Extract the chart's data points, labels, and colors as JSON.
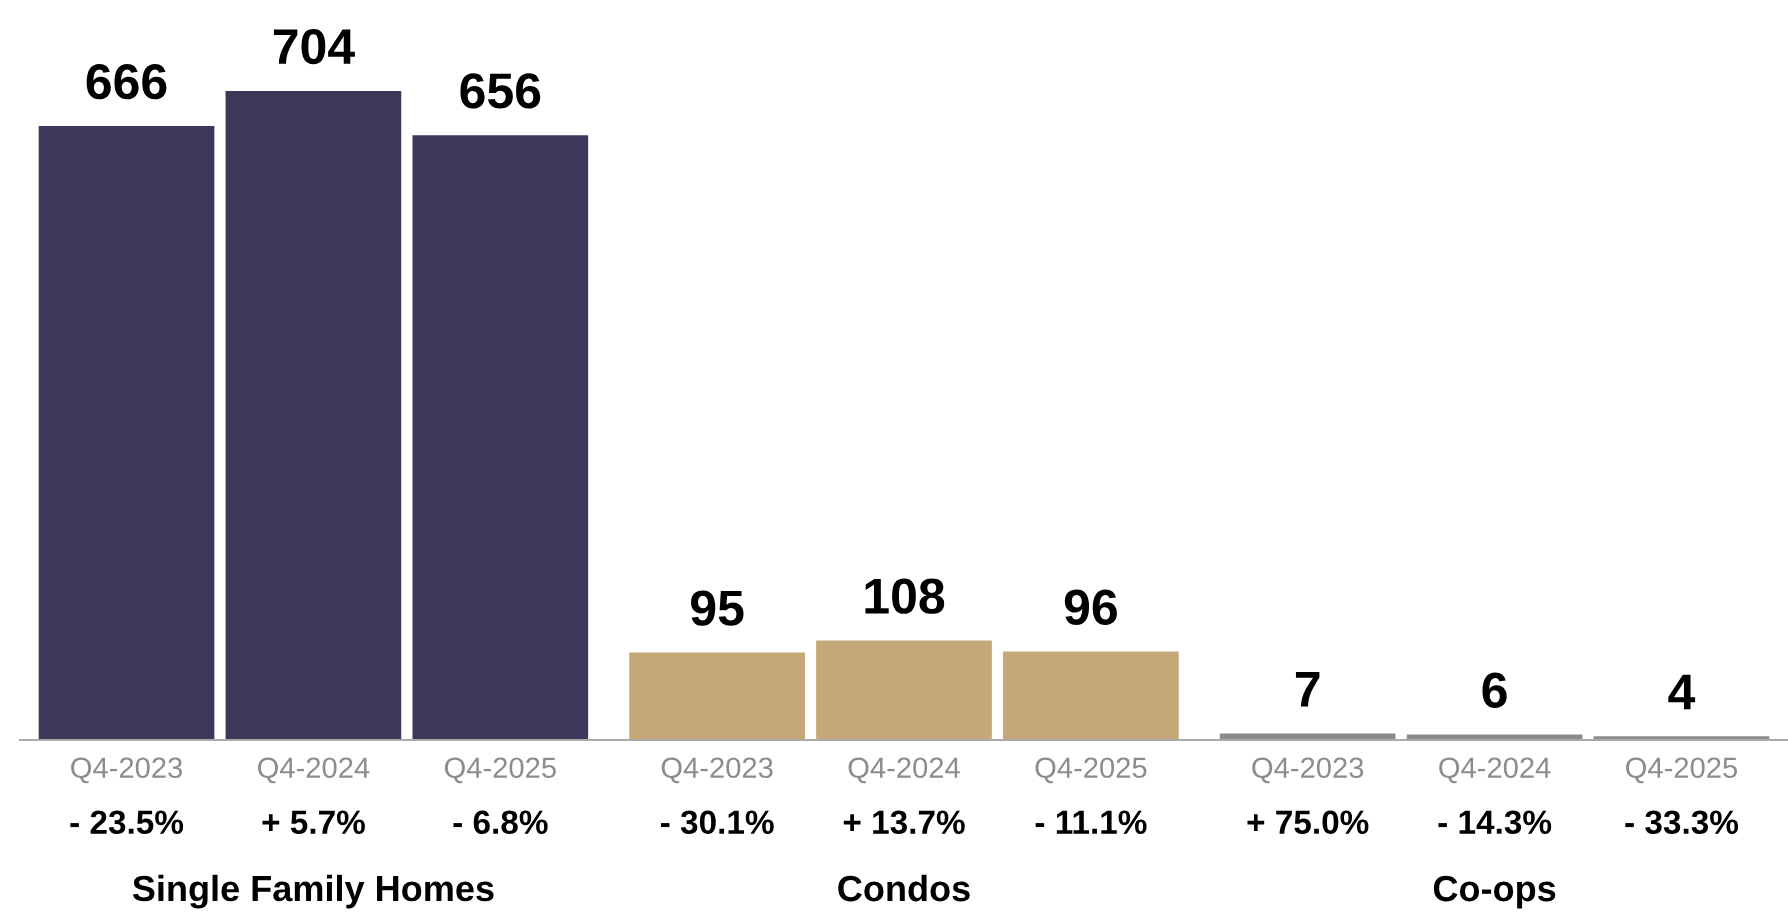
{
  "chart_data": {
    "type": "bar",
    "categories": [
      "Q4-2023",
      "Q4-2024",
      "Q4-2025",
      "Q4-2023",
      "Q4-2024",
      "Q4-2025",
      "Q4-2023",
      "Q4-2024",
      "Q4-2025"
    ],
    "values": [
      666,
      704,
      656,
      95,
      108,
      96,
      7,
      6,
      4
    ],
    "colors": [
      "#3b3859",
      "#3b3859",
      "#3b3859",
      "#c4a878",
      "#c4a878",
      "#c4a878",
      "#8c8c8c",
      "#8c8c8c",
      "#8c8c8c"
    ],
    "data_labels": true,
    "annotations": [
      "- 23.5%",
      "+ 5.7%",
      "- 6.8%",
      "- 30.1%",
      "+ 13.7%",
      "- 11.1%",
      "+ 75.0%",
      "- 14.3%",
      "- 33.3%",
      "Single Family Homes",
      "Condos",
      "Co-ops"
    ],
    "grid": false,
    "legend": false
  }
}
